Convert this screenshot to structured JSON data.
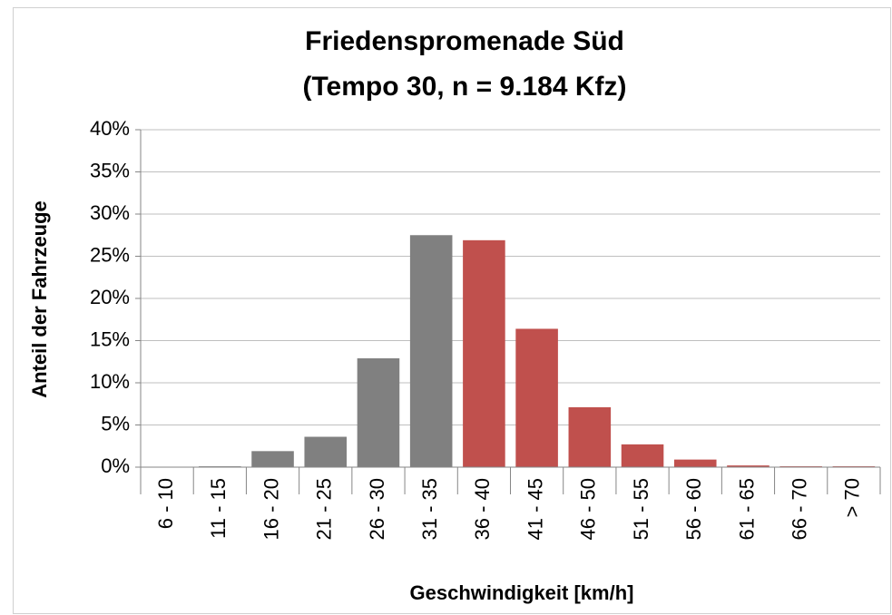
{
  "chart_data": {
    "type": "bar",
    "title": [
      "Friedenspromenade Süd",
      "(Tempo 30, n = 9.184 Kfz)"
    ],
    "x_label": "Geschwindigkeit [km/h]",
    "y_label": "Anteil der Fahrzeuge",
    "categories": [
      "6 - 10",
      "11 - 15",
      "16 - 20",
      "21 - 25",
      "26 - 30",
      "31 - 35",
      "36 - 40",
      "41 - 45",
      "46 - 50",
      "51 - 55",
      "56 - 60",
      "61 - 65",
      "66 - 70",
      "> 70"
    ],
    "values": [
      0.02,
      0.1,
      1.9,
      3.6,
      12.9,
      27.5,
      26.9,
      16.4,
      7.1,
      2.7,
      0.9,
      0.2,
      0.1,
      0.1
    ],
    "colors": [
      "#808080",
      "#808080",
      "#808080",
      "#808080",
      "#808080",
      "#808080",
      "#c0504d",
      "#c0504d",
      "#c0504d",
      "#c0504d",
      "#c0504d",
      "#c0504d",
      "#c0504d",
      "#c0504d"
    ],
    "ylim": [
      0,
      40
    ],
    "yticks": [
      {
        "value": 0,
        "label": "0%"
      },
      {
        "value": 5,
        "label": "5%"
      },
      {
        "value": 10,
        "label": "10%"
      },
      {
        "value": 15,
        "label": "15%"
      },
      {
        "value": 20,
        "label": "20%"
      },
      {
        "value": 25,
        "label": "25%"
      },
      {
        "value": 30,
        "label": "30%"
      },
      {
        "value": 35,
        "label": "35%"
      },
      {
        "value": 40,
        "label": "40%"
      }
    ],
    "grid": true
  }
}
